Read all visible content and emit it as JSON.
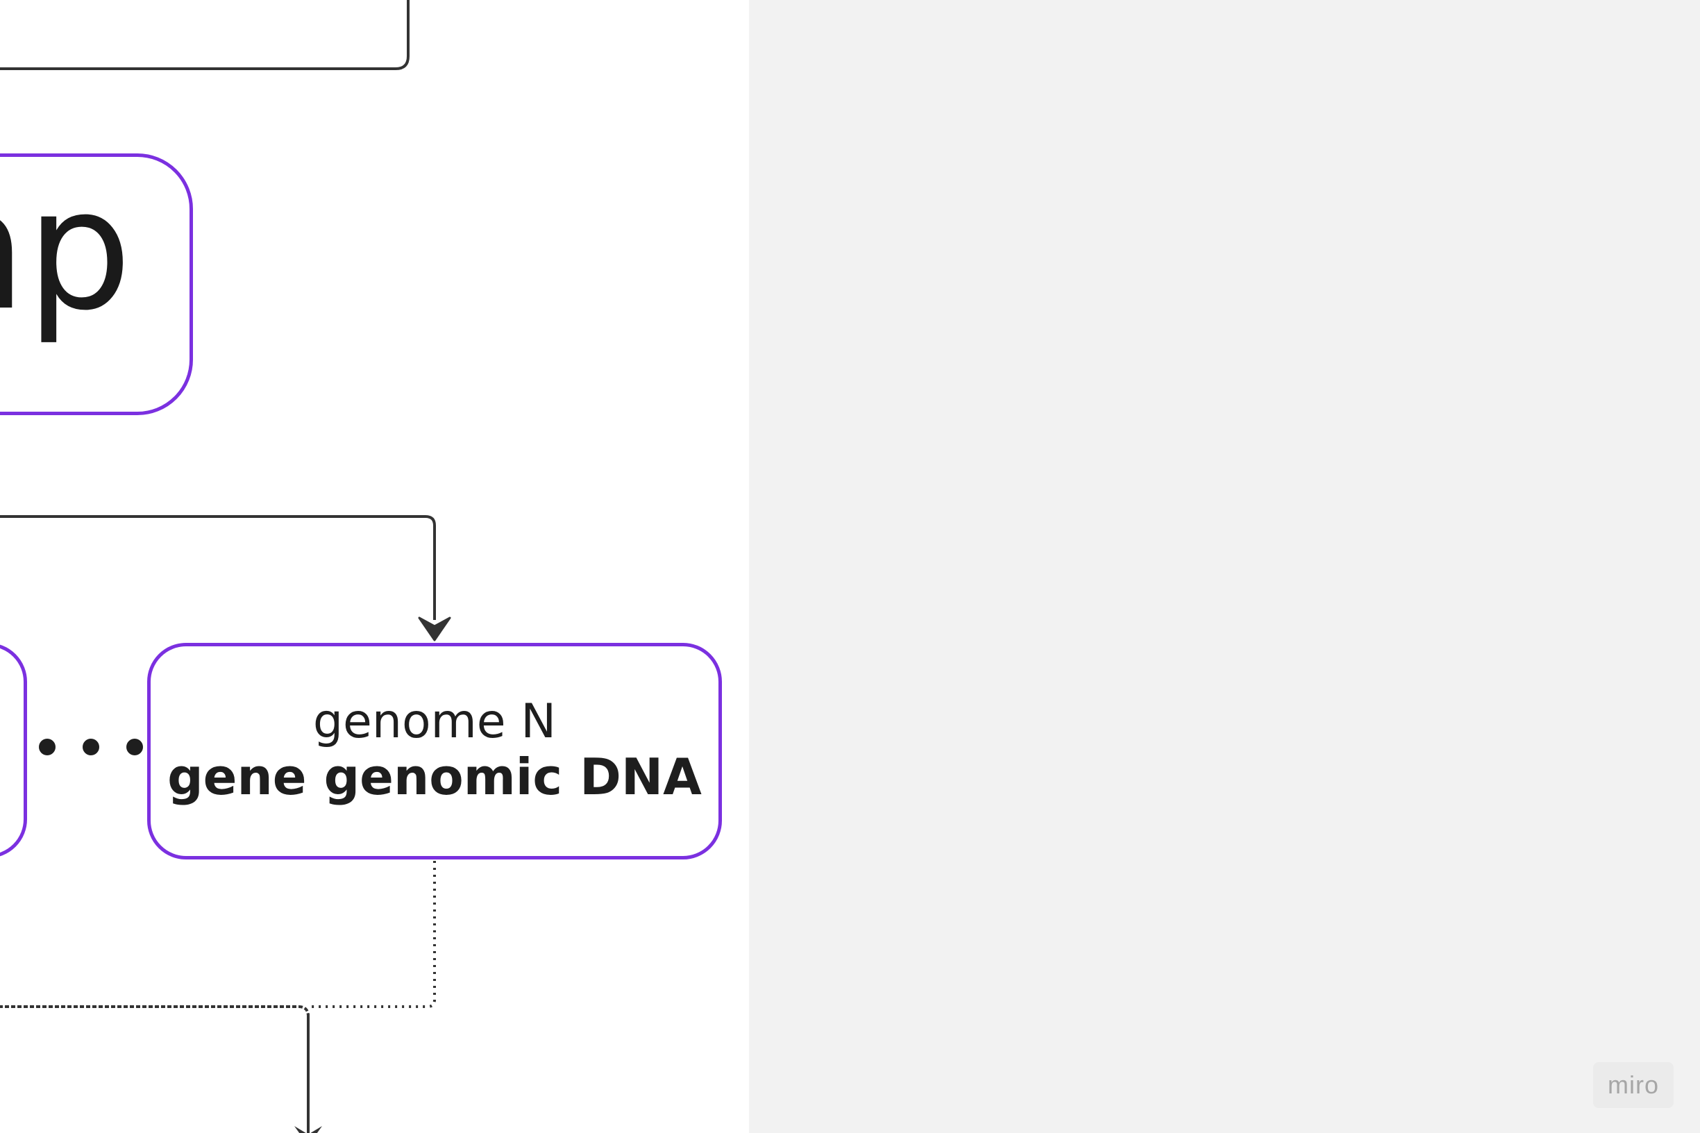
{
  "diagram": {
    "big_node_label": "np",
    "genome_node": {
      "title": "genome N",
      "subtitle": "gene genomic DNA"
    },
    "ellipsis": "...",
    "colors": {
      "node_border": "#7b30e0",
      "connector": "#333333",
      "canvas": "#ffffff",
      "outside": "#f2f2f2"
    }
  },
  "watermark": {
    "label": "miro"
  }
}
